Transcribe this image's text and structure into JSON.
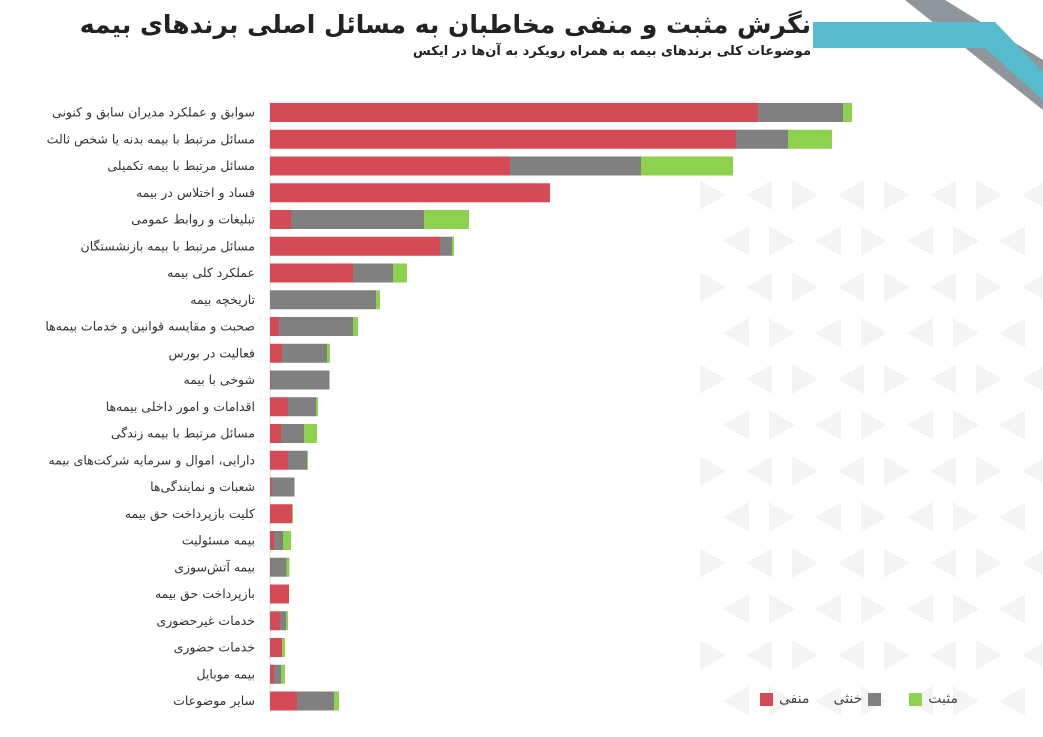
{
  "title": "نگرش مثبت و منفی مخاطبان به مسائل اصلی برندهای بیمه",
  "subtitle": "موضوعات کلی برندهای بیمه به همراه رویکرد به آن‌ها در ایکس",
  "colors": {
    "negative": "#d44a55",
    "neutral": "#808080",
    "positive": "#8ed14f",
    "accent_teal": "#56bccb",
    "accent_gray": "#8e959b"
  },
  "chart_data": {
    "type": "bar",
    "orientation": "horizontal",
    "stacked": true,
    "title": "نگرش مثبت و منفی مخاطبان به مسائل اصلی برندهای بیمه",
    "subtitle": "موضوعات کلی برندهای بیمه به همراه رویکرد به آن‌ها در ایکس",
    "value_axis_shown": false,
    "value_units": "relative (no axis printed)",
    "grid": false,
    "legend_position": "bottom-right",
    "categories": [
      "سوابق و عملکرد مدیران سابق و کنونی",
      "مسائل مرتبط با بیمه بدنه یا شخص ثالث",
      "مسائل مرتبط با بیمه تکمیلی",
      "فساد و اختلاس در بیمه",
      "تبلیغات و روابط عمومی",
      "مسائل مرتبط با بیمه بازنشستگان",
      "عملکرد کلی بیمه",
      "تاریخچه بیمه",
      "صحبت و مقایسه قوانین و خدمات بیمه‌ها",
      "فعالیت در بورس",
      "شوخی با بیمه",
      "اقدامات و امور داخلی بیمه‌ها",
      "مسائل مرتبط با بیمه زندگی",
      "دارایی، اموال و سرمایه شرکت‌های بیمه",
      "شعبات و نمایندگی‌ها",
      "کلیت بازپرداخت حق بیمه",
      "بیمه مسئولیت",
      "بیمه آتش‌سوزی",
      "بازپرداخت حق بیمه",
      "خدمات غیرحضوری",
      "خدمات حضوری",
      "بیمه موبایل",
      "سایر موضوعات"
    ],
    "series": [
      {
        "name": "منفی",
        "color": "#d44a55",
        "values": [
          488,
          466,
          240,
          280,
          21,
          170,
          83,
          0,
          9,
          12,
          0.5,
          18,
          11,
          18,
          1.5,
          22,
          4,
          0.5,
          19,
          10,
          12,
          4,
          27
        ]
      },
      {
        "name": "خنثی",
        "color": "#808080",
        "values": [
          85,
          52,
          131,
          0,
          133,
          12,
          40,
          106,
          74,
          45,
          59,
          28,
          23,
          19,
          23,
          0,
          9,
          16,
          0,
          6,
          0,
          7,
          37
        ]
      },
      {
        "name": "مثبت",
        "color": "#8ed14f",
        "values": [
          9,
          44,
          92,
          0,
          45,
          2,
          14,
          4,
          5,
          3,
          0,
          2,
          13,
          1,
          0,
          1,
          8,
          3,
          0,
          2,
          3,
          4,
          5
        ]
      }
    ]
  },
  "legend": {
    "negative": "منفی",
    "neutral": "خنثی",
    "positive": "مثبت"
  }
}
